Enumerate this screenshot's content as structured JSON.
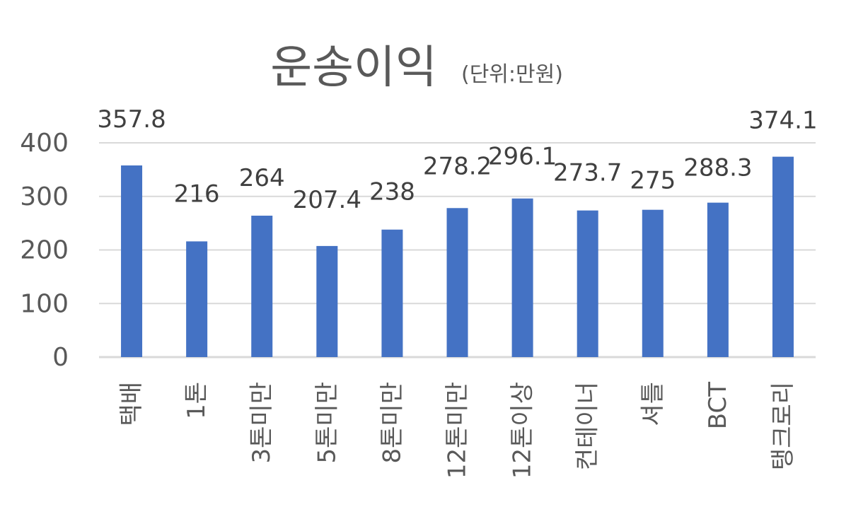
{
  "chart_data": {
    "type": "bar",
    "title": "운송이익",
    "subtitle": "(단위:만원)",
    "categories": [
      "택배",
      "1톤",
      "3톤미만",
      "5톤미만",
      "8톤미만",
      "12톤미만",
      "12톤이상",
      "컨테이너",
      "셔틀",
      "BCT",
      "탱크로리"
    ],
    "values": [
      357.8,
      216,
      264,
      207.4,
      238,
      278.2,
      296.1,
      273.7,
      275,
      288.3,
      374.1
    ],
    "data_labels": [
      "357.8",
      "216",
      "264",
      "207.4",
      "238",
      "278.2",
      "296.1",
      "273.7",
      "275",
      "288.3",
      "374.1"
    ],
    "y_ticks": [
      0,
      100,
      200,
      300,
      400
    ],
    "ylim": [
      0,
      400
    ],
    "grid": true,
    "legend": "none",
    "bar_color": "#4472C4",
    "gridline_color": "#D9D9D9",
    "text_color": "#595959"
  }
}
